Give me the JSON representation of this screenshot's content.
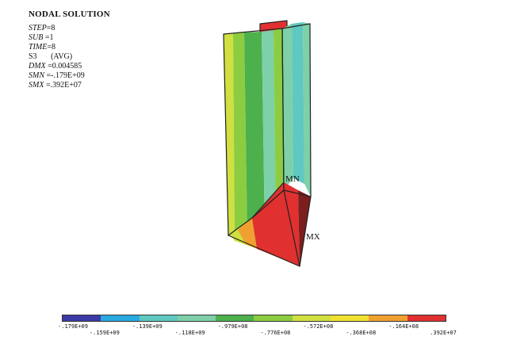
{
  "header": {
    "title": "NODAL SOLUTION",
    "lines": [
      {
        "k": "STEP",
        "v": "=8"
      },
      {
        "k": "SUB",
        "v": " =1"
      },
      {
        "k": "TIME",
        "v": "=8"
      },
      {
        "k": "S3",
        "v": "       (AVG)",
        "plain": true
      },
      {
        "k": "DMX",
        "v": " =0.004585"
      },
      {
        "k": "SMN",
        "v": " =-.179E+09"
      },
      {
        "k": "SMX",
        "v": " =.392E+07"
      }
    ]
  },
  "markers": {
    "min": "MN",
    "max": "MX"
  },
  "legend": {
    "colors": [
      "#3a3aa8",
      "#29a9e0",
      "#5fc8c0",
      "#7dd0a8",
      "#4cb04c",
      "#8ccc40",
      "#d0e040",
      "#f0e030",
      "#f0a030",
      "#e03030"
    ],
    "labels": [
      ".179E+09",
      ".159E+09",
      ".139E+09",
      ".118E+09",
      ".979E+08",
      ".776E+08",
      ".572E+08",
      ".368E+08",
      ".164E+08",
      ".392E+07"
    ],
    "signs": [
      "-",
      "-",
      "-",
      "-",
      "-",
      "-",
      "-",
      "-",
      "-",
      ""
    ]
  }
}
